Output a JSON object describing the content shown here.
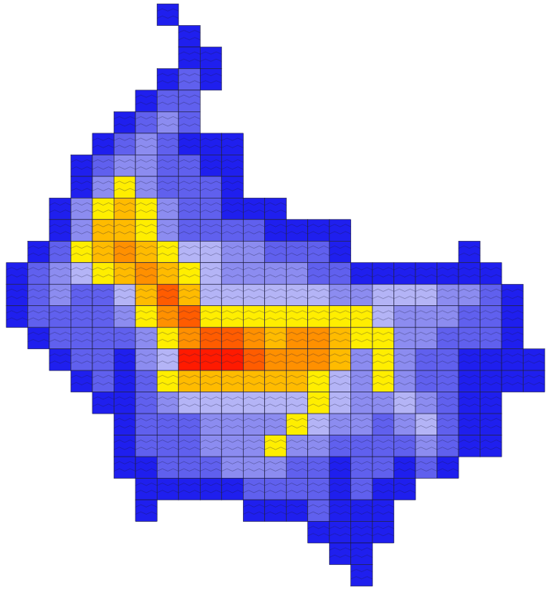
{
  "chart_data": {
    "type": "heatmap",
    "levels": [
      1,
      2,
      3,
      4,
      5,
      6,
      7,
      8,
      9
    ],
    "colors": [
      "#1f1fee",
      "#6060ee",
      "#8c8cf0",
      "#b4b4f6",
      "#ffee00",
      "#ffbb00",
      "#ff9000",
      "#ff5c00",
      "#ff1a00"
    ],
    "cells": [
      [
        null,
        null,
        null,
        null,
        null,
        null,
        null,
        1,
        null,
        null,
        null,
        null,
        null,
        null,
        null,
        null,
        null,
        null,
        null,
        null,
        null,
        null,
        null,
        null,
        null
      ],
      [
        null,
        null,
        null,
        null,
        null,
        null,
        null,
        null,
        1,
        null,
        null,
        null,
        null,
        null,
        null,
        null,
        null,
        null,
        null,
        null,
        null,
        null,
        null,
        null,
        null
      ],
      [
        null,
        null,
        null,
        null,
        null,
        null,
        null,
        null,
        1,
        1,
        null,
        null,
        null,
        null,
        null,
        null,
        null,
        null,
        null,
        null,
        null,
        null,
        null,
        null,
        null
      ],
      [
        null,
        null,
        null,
        null,
        null,
        null,
        null,
        1,
        2,
        1,
        null,
        null,
        null,
        null,
        null,
        null,
        null,
        null,
        null,
        null,
        null,
        null,
        null,
        null,
        null
      ],
      [
        null,
        null,
        null,
        null,
        null,
        null,
        1,
        2,
        2,
        null,
        null,
        null,
        null,
        null,
        null,
        null,
        null,
        null,
        null,
        null,
        null,
        null,
        null,
        null,
        null
      ],
      [
        null,
        null,
        null,
        null,
        null,
        1,
        2,
        3,
        2,
        null,
        null,
        null,
        null,
        null,
        null,
        null,
        null,
        null,
        null,
        null,
        null,
        null,
        null,
        null,
        null
      ],
      [
        null,
        null,
        null,
        null,
        1,
        2,
        3,
        2,
        1,
        1,
        1,
        null,
        null,
        null,
        null,
        null,
        null,
        null,
        null,
        null,
        null,
        null,
        null,
        null,
        null
      ],
      [
        null,
        null,
        null,
        1,
        2,
        3,
        3,
        2,
        2,
        1,
        1,
        null,
        null,
        null,
        null,
        null,
        null,
        null,
        null,
        null,
        null,
        null,
        null,
        null,
        null
      ],
      [
        null,
        null,
        null,
        1,
        3,
        5,
        3,
        2,
        2,
        2,
        1,
        null,
        null,
        null,
        null,
        null,
        null,
        null,
        null,
        null,
        null,
        null,
        null,
        null,
        null
      ],
      [
        null,
        null,
        1,
        3,
        5,
        6,
        5,
        3,
        2,
        2,
        1,
        1,
        1,
        null,
        null,
        null,
        null,
        null,
        null,
        null,
        null,
        null,
        null,
        null,
        null
      ],
      [
        null,
        null,
        1,
        3,
        6,
        6,
        5,
        3,
        2,
        2,
        2,
        2,
        1,
        1,
        1,
        1,
        null,
        null,
        null,
        null,
        null,
        null,
        null,
        null,
        null
      ],
      [
        null,
        1,
        2,
        5,
        6,
        7,
        6,
        5,
        4,
        4,
        3,
        3,
        2,
        2,
        2,
        1,
        null,
        null,
        null,
        null,
        null,
        1,
        null,
        null,
        null
      ],
      [
        1,
        2,
        3,
        4,
        5,
        6,
        7,
        6,
        5,
        4,
        3,
        3,
        3,
        3,
        2,
        2,
        1,
        1,
        1,
        1,
        1,
        1,
        1,
        null,
        null
      ],
      [
        1,
        2,
        3,
        2,
        2,
        4,
        6,
        8,
        6,
        4,
        4,
        4,
        4,
        4,
        4,
        3,
        3,
        4,
        4,
        4,
        3,
        3,
        2,
        1,
        null
      ],
      [
        1,
        2,
        2,
        2,
        2,
        3,
        5,
        7,
        8,
        5,
        5,
        5,
        5,
        5,
        5,
        5,
        5,
        4,
        3,
        3,
        3,
        2,
        2,
        1,
        null
      ],
      [
        null,
        1,
        2,
        2,
        2,
        2,
        3,
        5,
        7,
        8,
        8,
        7,
        6,
        7,
        7,
        6,
        5,
        5,
        3,
        3,
        2,
        2,
        2,
        1,
        null
      ],
      [
        null,
        null,
        1,
        2,
        2,
        1,
        3,
        4,
        9,
        9,
        9,
        8,
        7,
        7,
        7,
        6,
        3,
        5,
        3,
        2,
        2,
        1,
        1,
        1,
        1
      ],
      [
        null,
        null,
        null,
        1,
        2,
        1,
        2,
        5,
        6,
        6,
        6,
        6,
        6,
        6,
        5,
        4,
        3,
        5,
        3,
        2,
        2,
        1,
        1,
        1,
        1
      ],
      [
        null,
        null,
        null,
        null,
        1,
        1,
        2,
        3,
        4,
        4,
        4,
        4,
        4,
        4,
        5,
        4,
        3,
        3,
        4,
        3,
        2,
        1,
        1,
        null,
        null
      ],
      [
        null,
        null,
        null,
        null,
        null,
        1,
        2,
        2,
        2,
        3,
        3,
        3,
        3,
        5,
        4,
        3,
        3,
        2,
        3,
        4,
        2,
        1,
        1,
        null,
        null
      ],
      [
        null,
        null,
        null,
        null,
        null,
        1,
        2,
        2,
        2,
        3,
        3,
        3,
        5,
        3,
        3,
        2,
        2,
        2,
        2,
        3,
        2,
        1,
        1,
        null,
        null
      ],
      [
        null,
        null,
        null,
        null,
        null,
        1,
        1,
        2,
        2,
        2,
        3,
        3,
        3,
        2,
        2,
        1,
        2,
        2,
        1,
        2,
        1,
        null,
        null,
        null,
        null
      ],
      [
        null,
        null,
        null,
        null,
        null,
        null,
        1,
        1,
        1,
        1,
        1,
        2,
        2,
        2,
        2,
        1,
        2,
        1,
        1,
        null,
        null,
        null,
        null,
        null,
        null
      ],
      [
        null,
        null,
        null,
        null,
        null,
        null,
        1,
        null,
        null,
        null,
        null,
        1,
        1,
        1,
        2,
        1,
        1,
        1,
        null,
        null,
        null,
        null,
        null,
        null,
        null
      ],
      [
        null,
        null,
        null,
        null,
        null,
        null,
        null,
        null,
        null,
        null,
        null,
        null,
        null,
        null,
        1,
        1,
        1,
        1,
        null,
        null,
        null,
        null,
        null,
        null,
        null
      ],
      [
        null,
        null,
        null,
        null,
        null,
        null,
        null,
        null,
        null,
        null,
        null,
        null,
        null,
        null,
        null,
        1,
        1,
        null,
        null,
        null,
        null,
        null,
        null,
        null,
        null
      ],
      [
        null,
        null,
        null,
        null,
        null,
        null,
        null,
        null,
        null,
        null,
        null,
        null,
        null,
        null,
        null,
        null,
        1,
        null,
        null,
        null,
        null,
        null,
        null,
        null,
        null
      ]
    ]
  }
}
